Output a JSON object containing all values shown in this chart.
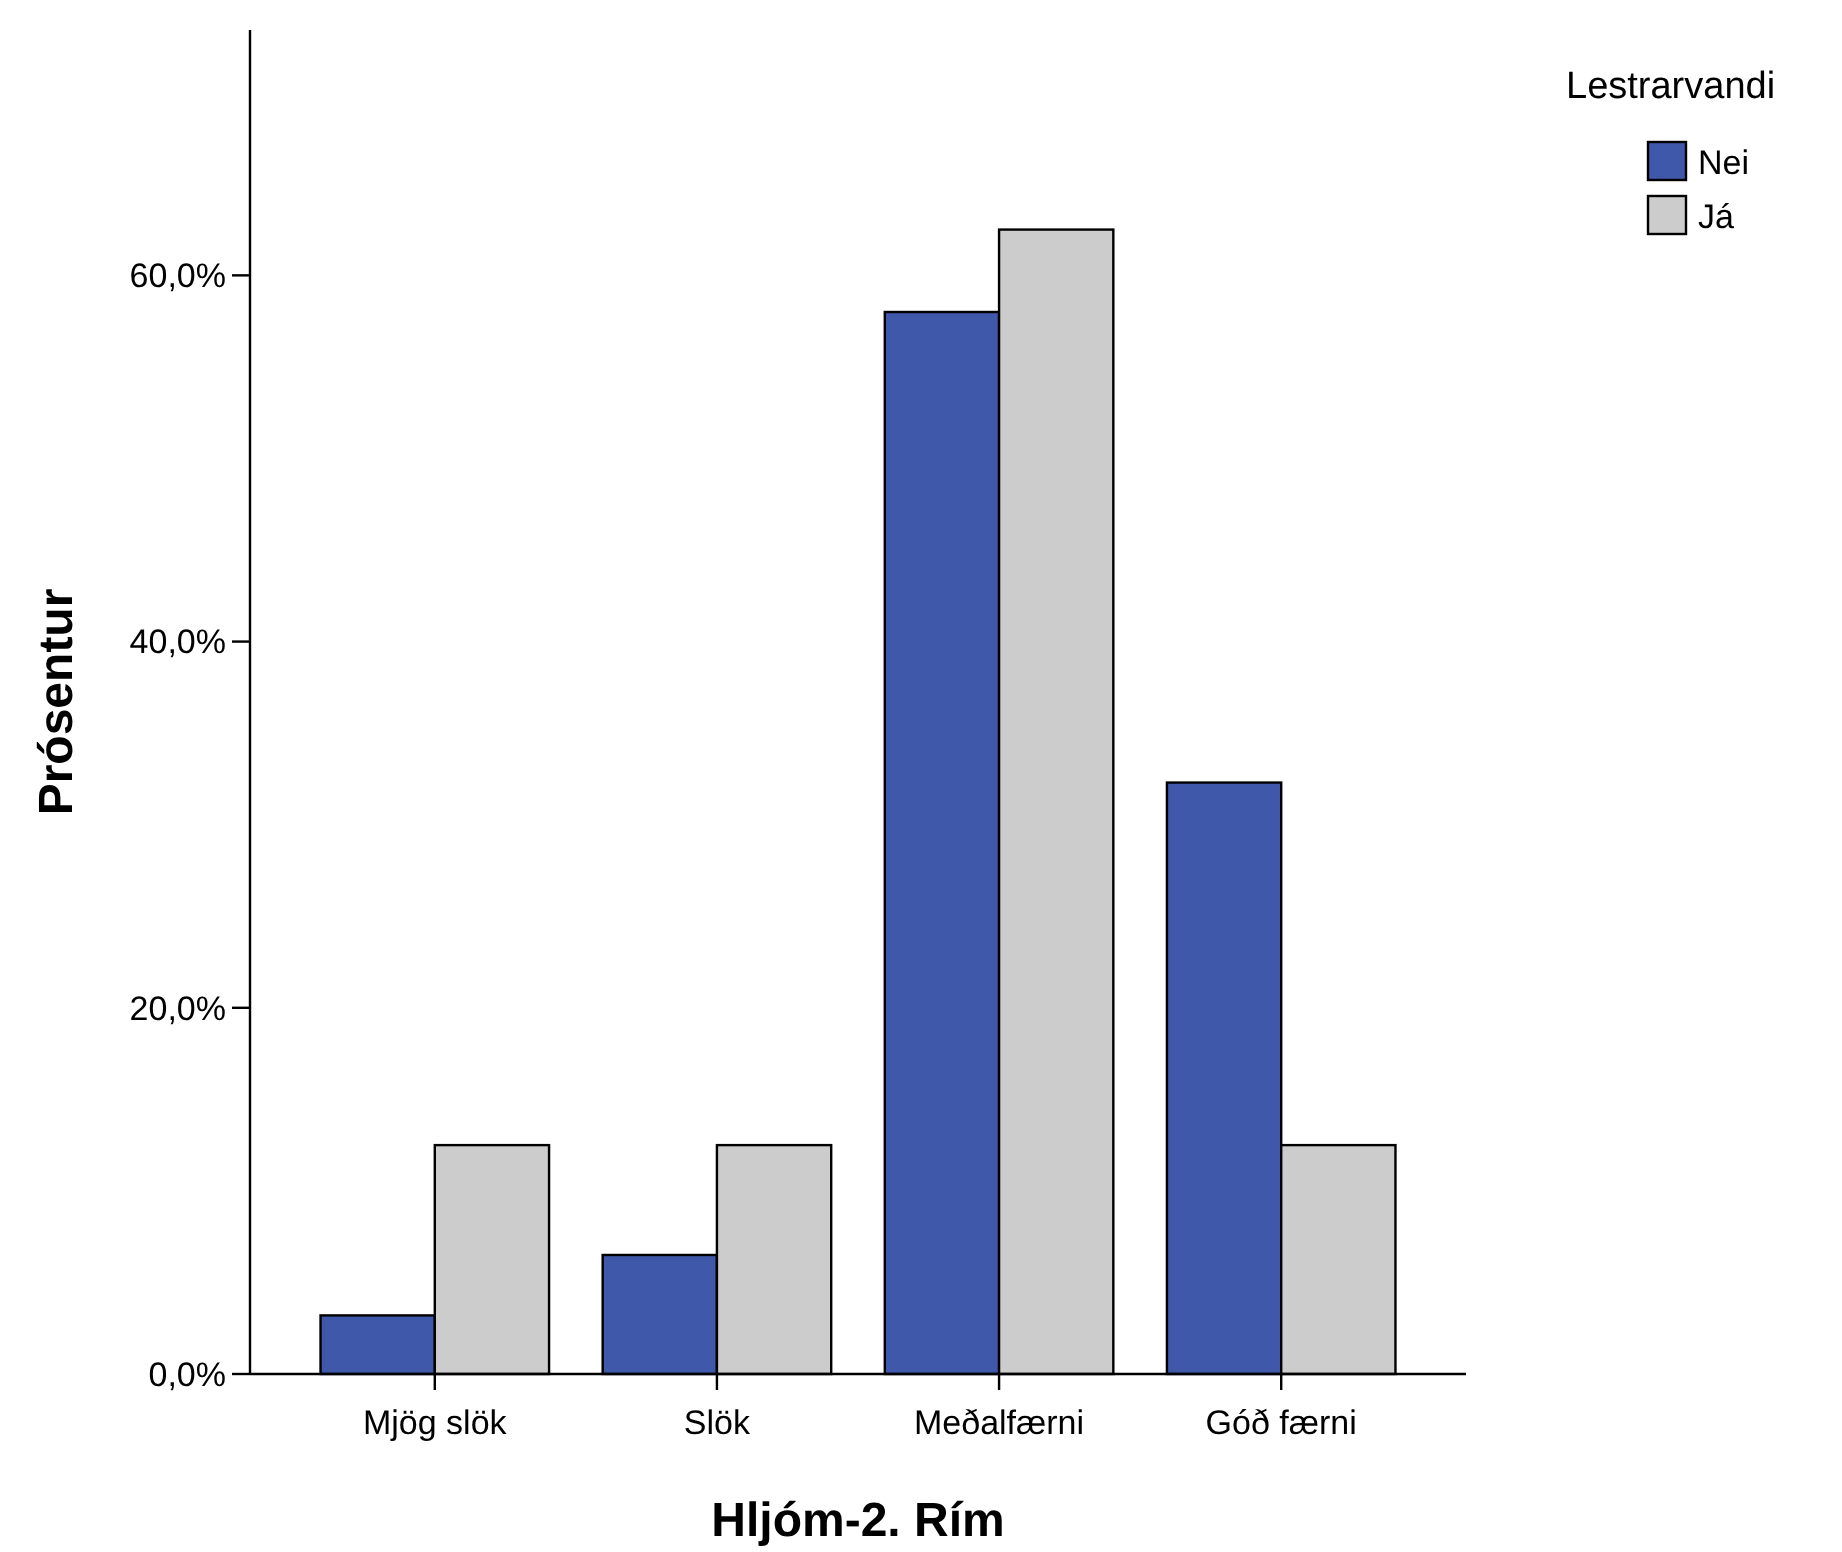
{
  "chart_data": {
    "type": "bar",
    "xlabel": "Hljóm-2. Rím",
    "ylabel": "Prósentur",
    "legend_title": "Lestrarvandi",
    "legend": "top right",
    "grid": false,
    "categories": [
      "Mjög slök",
      "Slök",
      "Meðalfærni",
      "Góð færni"
    ],
    "series": [
      {
        "name": "Nei",
        "color": "#3f58aa",
        "values": [
          3.2,
          6.5,
          58.0,
          32.3
        ]
      },
      {
        "name": "Já",
        "color": "#cccccc",
        "values": [
          12.5,
          12.5,
          62.5,
          12.5
        ]
      }
    ],
    "ylim": [
      0,
      73.4
    ],
    "yticks": [
      {
        "value": 0,
        "label": "0,0%"
      },
      {
        "value": 20,
        "label": "20,0%"
      },
      {
        "value": 40,
        "label": "40,0%"
      },
      {
        "value": 60,
        "label": "60,0%"
      }
    ]
  }
}
